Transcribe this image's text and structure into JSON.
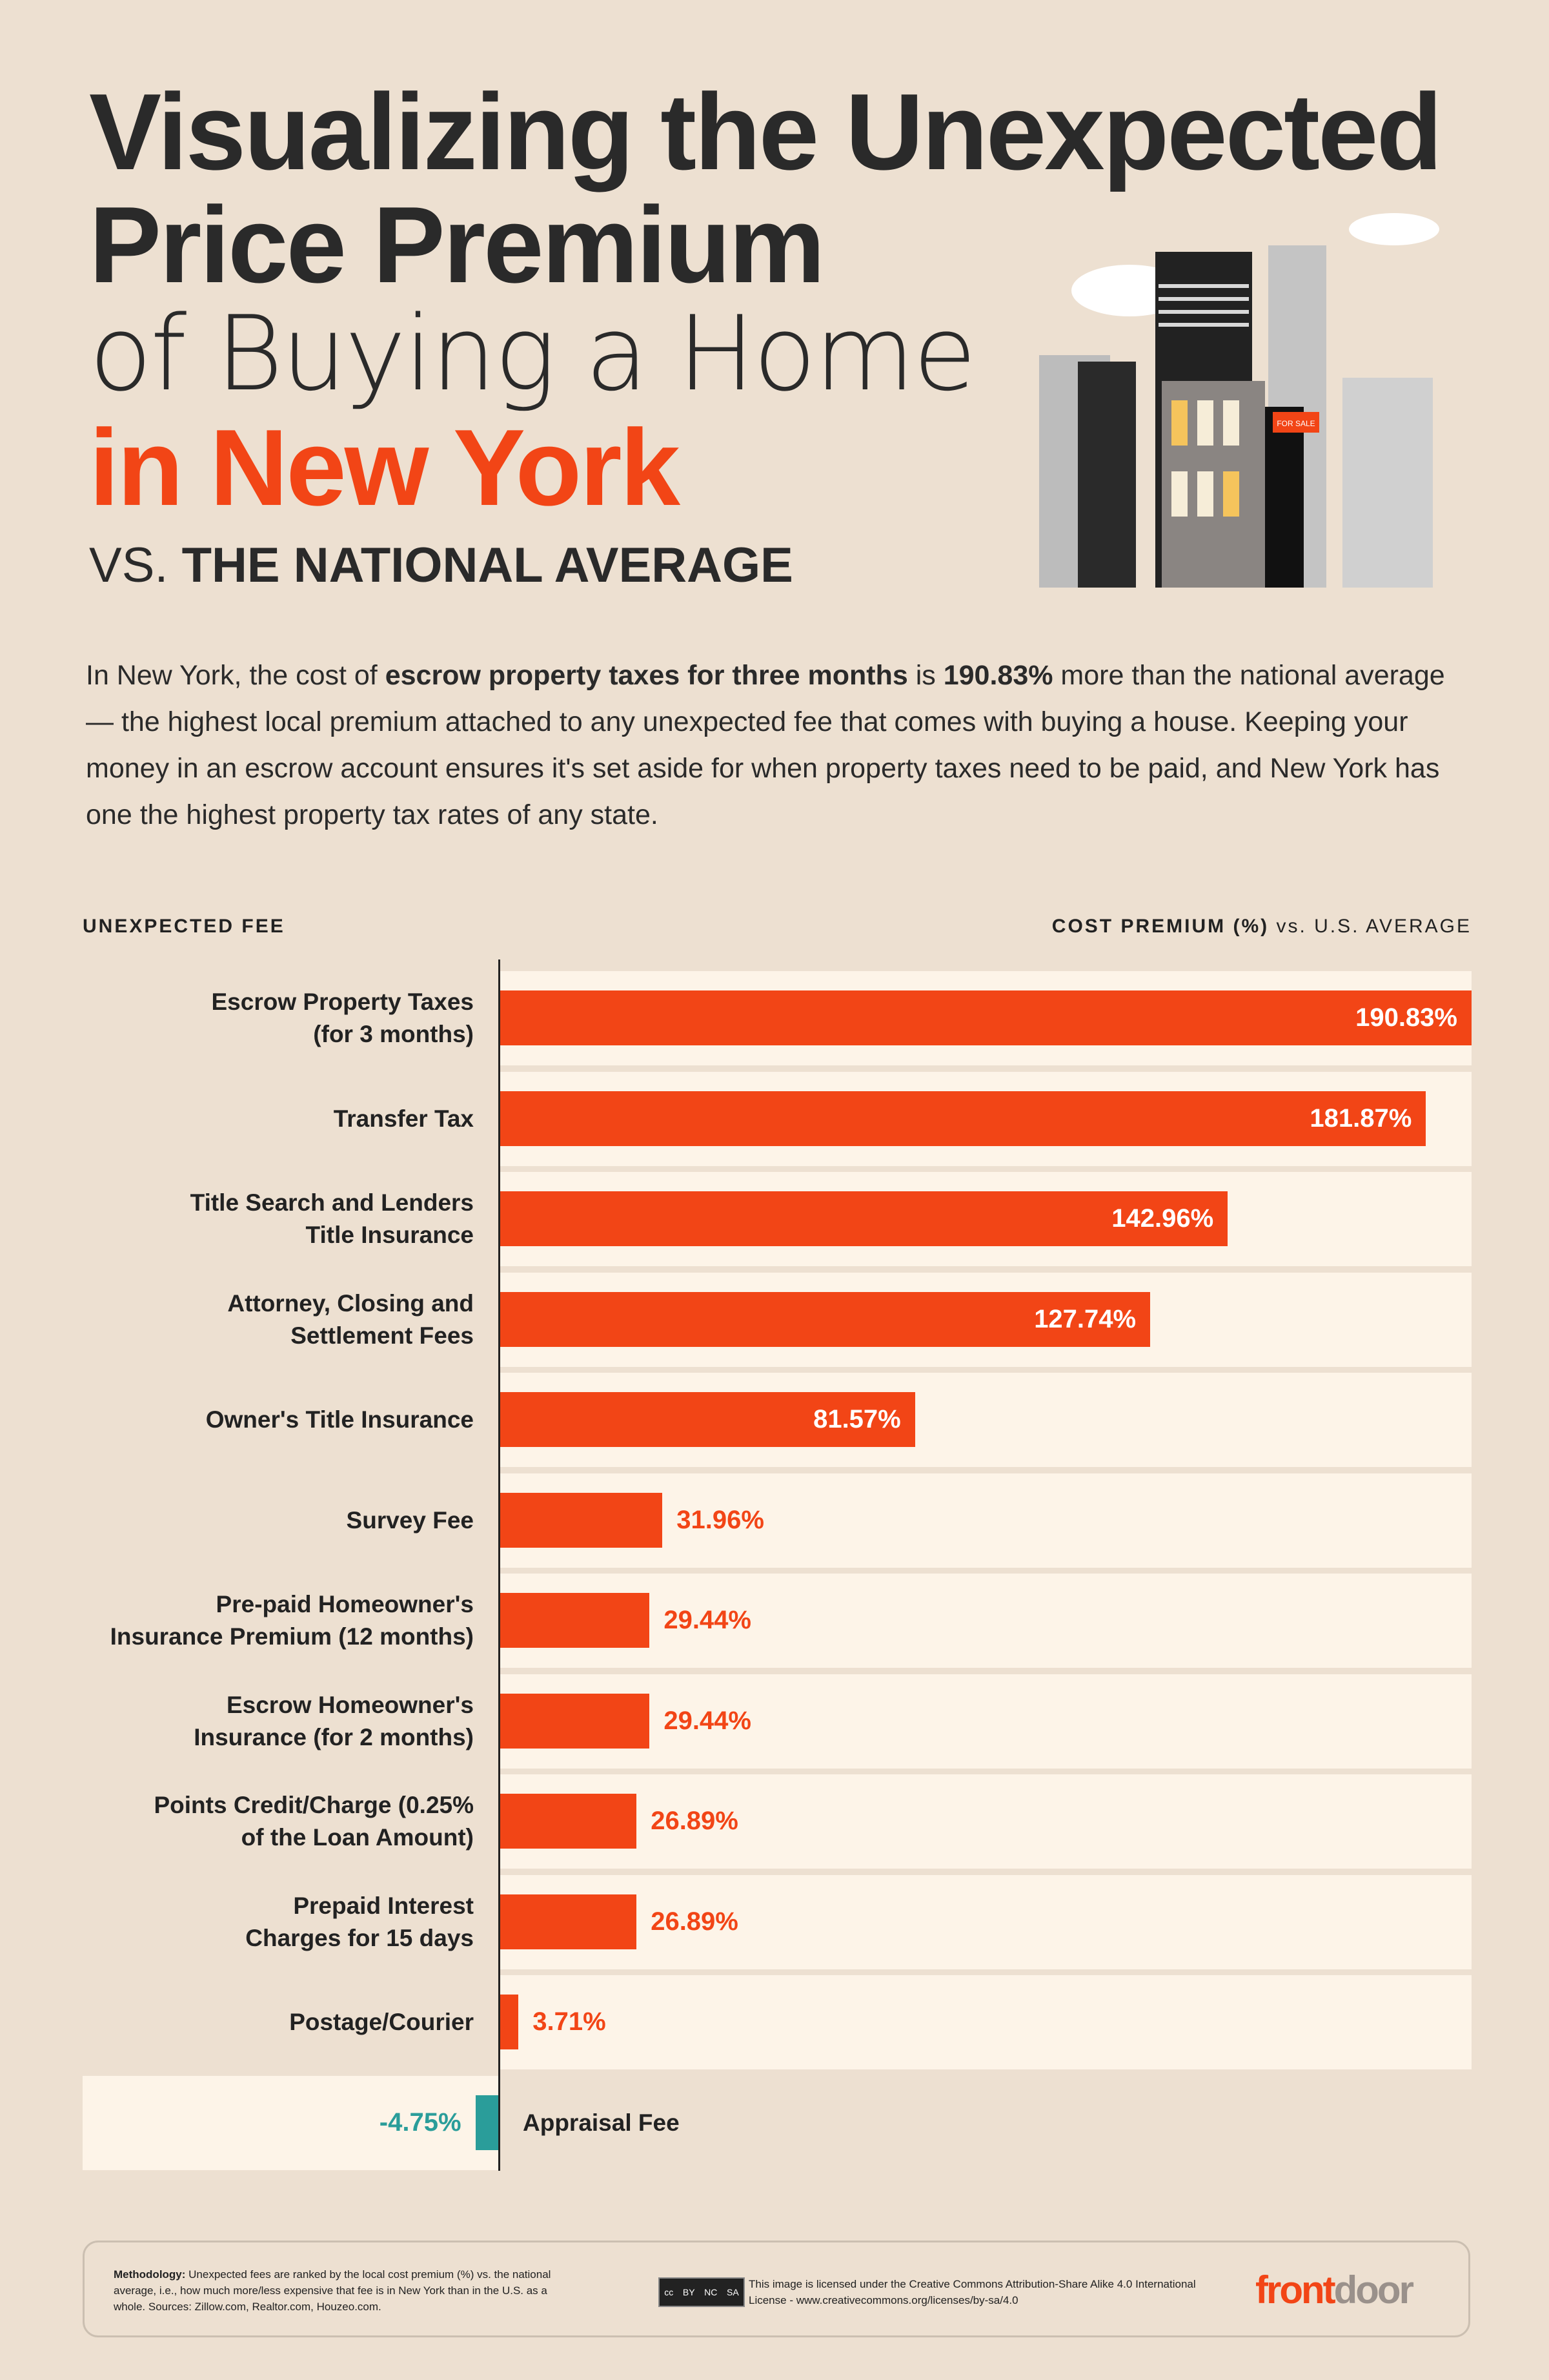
{
  "title": {
    "line1": "Visualizing the Unexpected",
    "line2": "Price Premium",
    "line3": "of Buying a Home",
    "line4": "in New York",
    "vs": "VS.",
    "subtitle": "THE NATIONAL AVERAGE"
  },
  "illustration": {
    "sign": "FOR SALE"
  },
  "intro": {
    "p1": "In New York, the cost of ",
    "b1": "escrow property taxes for three months",
    "p2": " is ",
    "b2": "190.83%",
    "p3": " more than the national average — the highest local premium attached to any unexpected fee that comes with buying a house. Keeping your money in an escrow account ensures it's set aside for when property taxes need to be paid, and New York has one the highest property tax rates of any state."
  },
  "chart_data": {
    "type": "bar",
    "orientation": "horizontal",
    "xlabel_left": "UNEXPECTED FEE",
    "xlabel_right_bold": "COST PREMIUM (%)",
    "xlabel_right": "vs. U.S. AVERAGE",
    "categories": [
      "Escrow Property Taxes (for 3 months)",
      "Transfer Tax",
      "Title Search and Lenders Title Insurance",
      "Attorney, Closing and Settlement Fees",
      "Owner's Title Insurance",
      "Survey Fee",
      "Pre-paid Homeowner's Insurance Premium (12 months)",
      "Escrow Homeowner's Insurance (for 2 months)",
      "Points Credit/Charge (0.25% of the Loan Amount)",
      "Prepaid Interest Charges for 15 days",
      "Postage/Courier",
      "Appraisal Fee"
    ],
    "label_lines": [
      [
        "Escrow Property Taxes",
        "(for 3 months)"
      ],
      [
        "Transfer Tax"
      ],
      [
        "Title Search and Lenders",
        "Title Insurance"
      ],
      [
        "Attorney, Closing and",
        "Settlement Fees"
      ],
      [
        "Owner's Title Insurance"
      ],
      [
        "Survey Fee"
      ],
      [
        "Pre-paid Homeowner's",
        "Insurance Premium (12 months)"
      ],
      [
        "Escrow Homeowner's",
        "Insurance (for 2 months)"
      ],
      [
        "Points Credit/Charge (0.25%",
        "of the Loan Amount)"
      ],
      [
        "Prepaid Interest",
        "Charges for 15 days"
      ],
      [
        "Postage/Courier"
      ],
      [
        "Appraisal Fee"
      ]
    ],
    "values": [
      190.83,
      181.87,
      142.96,
      127.74,
      81.57,
      31.96,
      29.44,
      29.44,
      26.89,
      26.89,
      3.71,
      -4.75
    ],
    "value_labels": [
      "190.83%",
      "181.87%",
      "142.96%",
      "127.74%",
      "81.57%",
      "31.96%",
      "29.44%",
      "29.44%",
      "26.89%",
      "26.89%",
      "3.71%",
      "-4.75%"
    ],
    "xlim": [
      -4.75,
      190.83
    ],
    "grid": false,
    "colors": {
      "positive": "#f24516",
      "negative": "#2a9d9a"
    }
  },
  "footer": {
    "methodology_label": "Methodology:",
    "methodology": " Unexpected fees are ranked by the local cost premium (%) vs. the national average, i.e., how much more/less expensive that fee is in New York than in the U.S. as a whole. Sources: Zillow.com, Realtor.com, Houzeo.com.",
    "cc_badge": [
      "cc",
      "BY",
      "NC",
      "SA"
    ],
    "license": "This image is licensed under the Creative Commons Attribution-Share Alike 4.0 International License - www.creativecommons.org/licenses/by-sa/4.0",
    "logo_front": "front",
    "logo_door": "door"
  }
}
